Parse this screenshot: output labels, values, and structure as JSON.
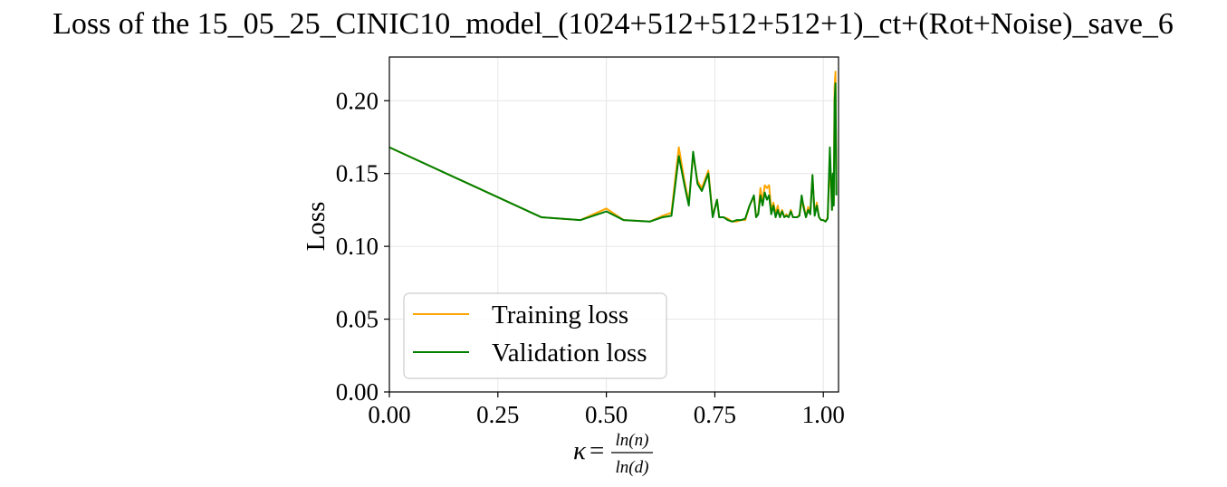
{
  "chart_data": {
    "type": "line",
    "title": "Loss of the 15_05_25_CINIC10_model_(1024+512+512+512+1)_ct+(Rot+Noise)_save_6",
    "xlabel": {
      "kappa": "κ",
      "equals": "=",
      "numerator": "ln(n)",
      "denominator": "ln(d)"
    },
    "ylabel": "Loss",
    "xlim": [
      0.0,
      1.035
    ],
    "ylim": [
      0.0,
      0.23
    ],
    "xticks": [
      0.0,
      0.25,
      0.5,
      0.75,
      1.0
    ],
    "xtick_labels": [
      "0.00",
      "0.25",
      "0.50",
      "0.75",
      "1.00"
    ],
    "yticks": [
      0.0,
      0.05,
      0.1,
      0.15,
      0.2
    ],
    "ytick_labels": [
      "0.00",
      "0.05",
      "0.10",
      "0.15",
      "0.20"
    ],
    "grid": true,
    "legend_position": "lower-left",
    "series": [
      {
        "name": "Training loss",
        "color": "#FFA500",
        "x": [
          0.0,
          0.35,
          0.44,
          0.5,
          0.54,
          0.6,
          0.63,
          0.65,
          0.66,
          0.667,
          0.68,
          0.69,
          0.7,
          0.71,
          0.72,
          0.735,
          0.745,
          0.755,
          0.76,
          0.77,
          0.78,
          0.79,
          0.8,
          0.81,
          0.82,
          0.83,
          0.84,
          0.845,
          0.85,
          0.855,
          0.86,
          0.865,
          0.87,
          0.875,
          0.88,
          0.885,
          0.89,
          0.895,
          0.9,
          0.905,
          0.91,
          0.915,
          0.92,
          0.925,
          0.93,
          0.935,
          0.94,
          0.945,
          0.95,
          0.955,
          0.96,
          0.965,
          0.97,
          0.975,
          0.98,
          0.985,
          0.99,
          0.995,
          1.0,
          1.005,
          1.01,
          1.015,
          1.02,
          1.022,
          1.024,
          1.026,
          1.028,
          1.03
        ],
        "y": [
          0.168,
          0.12,
          0.118,
          0.126,
          0.118,
          0.117,
          0.121,
          0.123,
          0.15,
          0.168,
          0.145,
          0.13,
          0.163,
          0.145,
          0.14,
          0.152,
          0.121,
          0.132,
          0.12,
          0.12,
          0.119,
          0.117,
          0.117,
          0.118,
          0.118,
          0.128,
          0.134,
          0.12,
          0.123,
          0.14,
          0.13,
          0.142,
          0.14,
          0.142,
          0.125,
          0.13,
          0.122,
          0.128,
          0.12,
          0.125,
          0.12,
          0.122,
          0.12,
          0.125,
          0.12,
          0.12,
          0.12,
          0.122,
          0.13,
          0.128,
          0.12,
          0.127,
          0.123,
          0.148,
          0.122,
          0.13,
          0.12,
          0.118,
          0.118,
          0.117,
          0.12,
          0.16,
          0.125,
          0.15,
          0.13,
          0.21,
          0.22,
          0.14
        ]
      },
      {
        "name": "Validation loss",
        "color": "#008000",
        "x": [
          0.0,
          0.35,
          0.44,
          0.5,
          0.54,
          0.6,
          0.63,
          0.65,
          0.66,
          0.667,
          0.68,
          0.69,
          0.7,
          0.71,
          0.72,
          0.735,
          0.745,
          0.755,
          0.76,
          0.77,
          0.78,
          0.79,
          0.8,
          0.81,
          0.82,
          0.83,
          0.84,
          0.845,
          0.85,
          0.855,
          0.86,
          0.865,
          0.87,
          0.875,
          0.88,
          0.885,
          0.89,
          0.895,
          0.9,
          0.905,
          0.91,
          0.915,
          0.92,
          0.925,
          0.93,
          0.935,
          0.94,
          0.945,
          0.95,
          0.955,
          0.96,
          0.965,
          0.97,
          0.975,
          0.98,
          0.985,
          0.99,
          0.995,
          1.0,
          1.005,
          1.01,
          1.015,
          1.02,
          1.022,
          1.024,
          1.026,
          1.028,
          1.03
        ],
        "y": [
          0.168,
          0.12,
          0.118,
          0.124,
          0.118,
          0.117,
          0.12,
          0.121,
          0.145,
          0.162,
          0.142,
          0.128,
          0.165,
          0.143,
          0.138,
          0.15,
          0.12,
          0.132,
          0.12,
          0.12,
          0.118,
          0.117,
          0.118,
          0.118,
          0.119,
          0.128,
          0.135,
          0.12,
          0.122,
          0.135,
          0.128,
          0.137,
          0.132,
          0.135,
          0.122,
          0.128,
          0.12,
          0.125,
          0.12,
          0.124,
          0.12,
          0.121,
          0.12,
          0.124,
          0.12,
          0.12,
          0.12,
          0.121,
          0.135,
          0.126,
          0.12,
          0.125,
          0.122,
          0.149,
          0.121,
          0.128,
          0.12,
          0.118,
          0.118,
          0.117,
          0.119,
          0.168,
          0.125,
          0.15,
          0.128,
          0.2,
          0.212,
          0.135
        ]
      }
    ]
  }
}
